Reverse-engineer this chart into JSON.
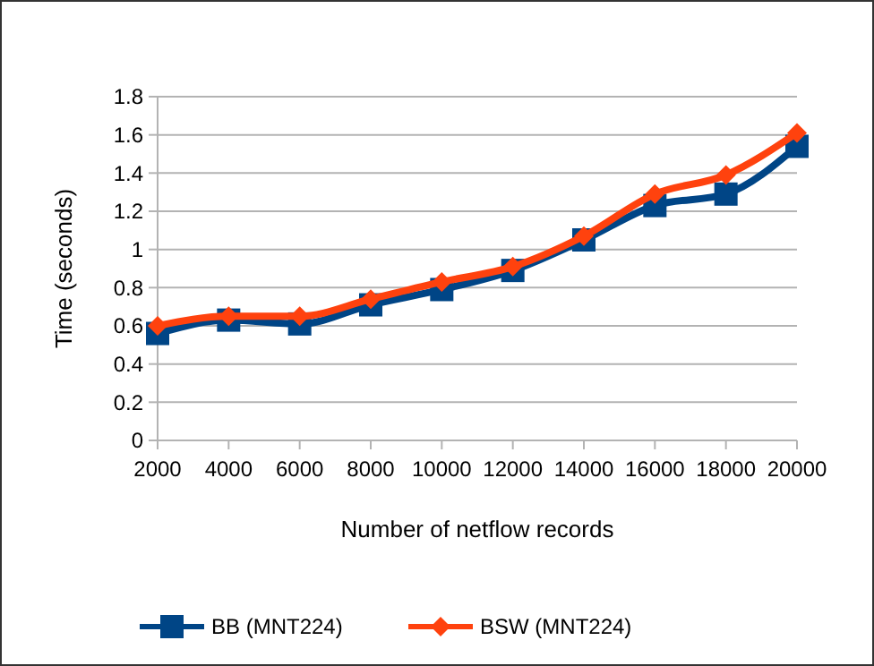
{
  "chart_data": {
    "type": "line",
    "xlabel": "Number of netflow records",
    "ylabel": "Time (seconds)",
    "categories": [
      "2000",
      "4000",
      "6000",
      "8000",
      "10000",
      "12000",
      "14000",
      "16000",
      "18000",
      "20000"
    ],
    "series": [
      {
        "name": "BB (MNT224)",
        "color": "#004586",
        "marker": "square",
        "values": [
          0.56,
          0.63,
          0.61,
          0.71,
          0.79,
          0.89,
          1.05,
          1.23,
          1.29,
          1.54
        ]
      },
      {
        "name": "BSW (MNT224)",
        "color": "#ff420e",
        "marker": "diamond",
        "values": [
          0.6,
          0.65,
          0.65,
          0.74,
          0.83,
          0.91,
          1.07,
          1.29,
          1.39,
          1.61
        ]
      }
    ],
    "ylim": [
      0,
      1.8
    ],
    "yticks": [
      0,
      0.2,
      0.4,
      0.6,
      0.8,
      1,
      1.2,
      1.4,
      1.6,
      1.8
    ],
    "grid": "y",
    "legend": "bottom"
  }
}
